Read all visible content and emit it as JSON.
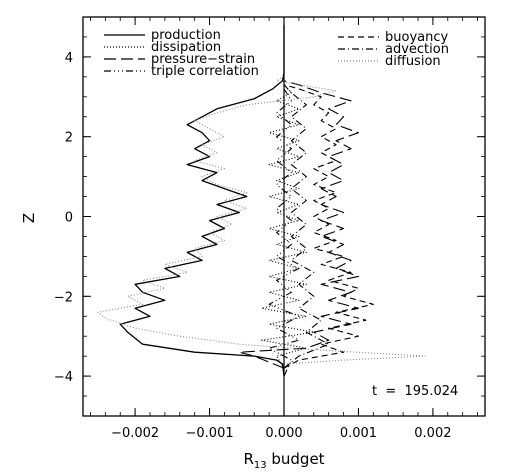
{
  "chart_data": {
    "type": "line",
    "title": "",
    "xlabel": "R",
    "xlabel_sub": "13",
    "xlabel_rest": " budget",
    "ylabel": "Z",
    "xlim": [
      -0.0027,
      0.0027
    ],
    "ylim": [
      -5,
      5
    ],
    "x_ticks": [
      -0.002,
      -0.001,
      0.0,
      0.001,
      0.002
    ],
    "x_tick_labels": [
      "−0.002",
      "−0.001",
      "0.000",
      "0.001",
      "0.002"
    ],
    "y_ticks": [
      -4,
      -2,
      0,
      2,
      4
    ],
    "y_tick_labels": [
      "−4",
      "−2",
      "0",
      "2",
      "4"
    ],
    "grid": false,
    "legend_left": [
      "production",
      "dissipation",
      "pressure−strain",
      "triple correlation"
    ],
    "legend_right": [
      "buoyancy",
      "advection",
      "diffusion"
    ],
    "annotation": "t  =  195.024",
    "series": [
      {
        "name": "production",
        "dash": "",
        "color": "#000000",
        "points": [
          [
            0,
            -4.0
          ],
          [
            -2e-05,
            -3.7
          ],
          [
            -0.0001,
            -3.6
          ],
          [
            -0.0004,
            -3.5
          ],
          [
            -0.0012,
            -3.4
          ],
          [
            -0.0019,
            -3.2
          ],
          [
            -0.0021,
            -2.9
          ],
          [
            -0.0022,
            -2.7
          ],
          [
            -0.0018,
            -2.5
          ],
          [
            -0.002,
            -2.3
          ],
          [
            -0.0016,
            -2.1
          ],
          [
            -0.0019,
            -1.9
          ],
          [
            -0.002,
            -1.7
          ],
          [
            -0.0014,
            -1.5
          ],
          [
            -0.0016,
            -1.3
          ],
          [
            -0.0011,
            -1.1
          ],
          [
            -0.0013,
            -0.9
          ],
          [
            -0.0009,
            -0.7
          ],
          [
            -0.0011,
            -0.5
          ],
          [
            -0.0008,
            -0.3
          ],
          [
            -0.001,
            -0.1
          ],
          [
            -0.0006,
            0.1
          ],
          [
            -0.0009,
            0.3
          ],
          [
            -0.0005,
            0.5
          ],
          [
            -0.0008,
            0.7
          ],
          [
            -0.0011,
            0.9
          ],
          [
            -0.0009,
            1.1
          ],
          [
            -0.0013,
            1.3
          ],
          [
            -0.001,
            1.5
          ],
          [
            -0.0012,
            1.7
          ],
          [
            -0.001,
            1.9
          ],
          [
            -0.0011,
            2.1
          ],
          [
            -0.0013,
            2.3
          ],
          [
            -0.0011,
            2.5
          ],
          [
            -0.0009,
            2.7
          ],
          [
            -0.0004,
            2.95
          ],
          [
            -0.00015,
            3.2
          ],
          [
            -2e-05,
            3.4
          ],
          [
            0,
            3.6
          ],
          [
            0,
            4.8
          ]
        ]
      },
      {
        "name": "dissipation",
        "dash": "1,2",
        "color": "#000000",
        "points": [
          [
            0,
            -3.8
          ],
          [
            -0.0001,
            -3.5
          ],
          [
            0.0003,
            -3.3
          ],
          [
            -0.0003,
            -3.1
          ],
          [
            0.0004,
            -2.9
          ],
          [
            -0.0002,
            -2.7
          ],
          [
            0.0003,
            -2.5
          ],
          [
            -0.0003,
            -2.3
          ],
          [
            0.0002,
            -2.1
          ],
          [
            -0.0002,
            -1.9
          ],
          [
            0.0003,
            -1.7
          ],
          [
            -0.0002,
            -1.5
          ],
          [
            0.0002,
            -1.3
          ],
          [
            -0.0002,
            -1.1
          ],
          [
            0.0003,
            -0.9
          ],
          [
            -0.0001,
            -0.7
          ],
          [
            0.0002,
            -0.5
          ],
          [
            -0.0002,
            -0.3
          ],
          [
            0.0002,
            -0.1
          ],
          [
            -0.0001,
            0.1
          ],
          [
            0.0002,
            0.3
          ],
          [
            -0.0002,
            0.5
          ],
          [
            0.0002,
            0.7
          ],
          [
            -0.0001,
            0.9
          ],
          [
            0.0002,
            1.1
          ],
          [
            -0.0002,
            1.3
          ],
          [
            0.0002,
            1.5
          ],
          [
            -0.0001,
            1.7
          ],
          [
            0.0002,
            1.9
          ],
          [
            -0.0002,
            2.1
          ],
          [
            0.0002,
            2.3
          ],
          [
            -0.0001,
            2.5
          ],
          [
            0.0002,
            2.7
          ],
          [
            -0.0001,
            2.9
          ],
          [
            0.0001,
            3.1
          ],
          [
            0,
            3.3
          ]
        ]
      },
      {
        "name": "pressure−strain",
        "dash": "12,5",
        "color": "#000000",
        "points": [
          [
            0,
            -3.8
          ],
          [
            -0.0004,
            -3.5
          ],
          [
            -0.0006,
            -3.4
          ],
          [
            0.0003,
            -3.3
          ],
          [
            0.0006,
            -3.1
          ],
          [
            0.0004,
            -2.9
          ],
          [
            0.0009,
            -2.7
          ],
          [
            0.0005,
            -2.5
          ],
          [
            0.001,
            -2.3
          ],
          [
            0.0006,
            -2.1
          ],
          [
            0.0009,
            -1.9
          ],
          [
            0.0005,
            -1.7
          ],
          [
            0.001,
            -1.5
          ],
          [
            0.0007,
            -1.3
          ],
          [
            0.0009,
            -1.1
          ],
          [
            0.0006,
            -0.9
          ],
          [
            0.0008,
            -0.7
          ],
          [
            0.0005,
            -0.5
          ],
          [
            0.0008,
            -0.3
          ],
          [
            0.0005,
            -0.1
          ],
          [
            0.0008,
            0.1
          ],
          [
            0.0005,
            0.3
          ],
          [
            0.0007,
            0.5
          ],
          [
            0.0005,
            0.7
          ],
          [
            0.0008,
            0.9
          ],
          [
            0.0006,
            1.1
          ],
          [
            0.0008,
            1.3
          ],
          [
            0.0006,
            1.5
          ],
          [
            0.0009,
            1.7
          ],
          [
            0.0007,
            1.9
          ],
          [
            0.001,
            2.1
          ],
          [
            0.0007,
            2.3
          ],
          [
            0.0008,
            2.5
          ],
          [
            0.0006,
            2.7
          ],
          [
            0.0009,
            2.9
          ],
          [
            0.0005,
            3.1
          ],
          [
            0.0002,
            3.3
          ],
          [
            0,
            3.4
          ]
        ]
      },
      {
        "name": "triple correlation",
        "dash": "7,3,1,3,1,3,1,3",
        "color": "#000000",
        "points": [
          [
            0,
            -4.0
          ],
          [
            0.0001,
            -3.6
          ],
          [
            -0.0002,
            -3.3
          ],
          [
            0.0002,
            -3.1
          ],
          [
            -0.0001,
            -2.8
          ],
          [
            0.0002,
            -2.5
          ],
          [
            -0.0002,
            -2.2
          ],
          [
            0.0001,
            -1.9
          ],
          [
            -0.0001,
            -1.6
          ],
          [
            0.0002,
            -1.3
          ],
          [
            -0.0001,
            -1.0
          ],
          [
            0.0001,
            -0.7
          ],
          [
            -0.0001,
            -0.4
          ],
          [
            0.0001,
            -0.1
          ],
          [
            -0.0001,
            0.2
          ],
          [
            0.0001,
            0.5
          ],
          [
            -0.0001,
            0.8
          ],
          [
            0.0001,
            1.1
          ],
          [
            -0.0001,
            1.4
          ],
          [
            0.0001,
            1.7
          ],
          [
            -0.0001,
            2.0
          ],
          [
            0.0001,
            2.3
          ],
          [
            -0.0001,
            2.6
          ],
          [
            0.0001,
            2.9
          ],
          [
            0,
            3.2
          ]
        ]
      },
      {
        "name": "buoyancy",
        "dash": "6,4",
        "color": "#000000",
        "points": [
          [
            0,
            -3.8
          ],
          [
            0.0002,
            -3.6
          ],
          [
            0.0008,
            -3.4
          ],
          [
            0.0005,
            -3.2
          ],
          [
            0.001,
            -3.0
          ],
          [
            0.0006,
            -2.8
          ],
          [
            0.0011,
            -2.6
          ],
          [
            0.0007,
            -2.4
          ],
          [
            0.0012,
            -2.2
          ],
          [
            0.0008,
            -2.0
          ],
          [
            0.001,
            -1.8
          ],
          [
            0.0006,
            -1.6
          ],
          [
            0.0009,
            -1.4
          ],
          [
            0.0005,
            -1.2
          ],
          [
            0.0008,
            -1.0
          ],
          [
            0.0004,
            -0.8
          ],
          [
            0.0007,
            -0.6
          ],
          [
            0.0004,
            -0.4
          ],
          [
            0.0006,
            -0.2
          ],
          [
            0.0004,
            0.0
          ],
          [
            0.0006,
            0.2
          ],
          [
            0.0004,
            0.4
          ],
          [
            0.0007,
            0.6
          ],
          [
            0.0004,
            0.8
          ],
          [
            0.0006,
            1.0
          ],
          [
            0.0004,
            1.2
          ],
          [
            0.0007,
            1.4
          ],
          [
            0.0005,
            1.6
          ],
          [
            0.0007,
            1.8
          ],
          [
            0.0005,
            2.0
          ],
          [
            0.0007,
            2.2
          ],
          [
            0.0005,
            2.4
          ],
          [
            0.0006,
            2.6
          ],
          [
            0.0004,
            2.8
          ],
          [
            0.0005,
            3.0
          ],
          [
            0.0002,
            3.2
          ],
          [
            0,
            3.3
          ]
        ]
      },
      {
        "name": "advection",
        "dash": "7,3,1,3",
        "color": "#000000",
        "points": [
          [
            0,
            -3.8
          ],
          [
            0.0002,
            -3.5
          ],
          [
            0.0006,
            -3.2
          ],
          [
            0.0003,
            -2.9
          ],
          [
            0.0005,
            -2.6
          ],
          [
            0.0002,
            -2.3
          ],
          [
            0.0004,
            -2.0
          ],
          [
            0.0002,
            -1.7
          ],
          [
            0.0004,
            -1.4
          ],
          [
            0.0001,
            -1.1
          ],
          [
            0.0003,
            -0.8
          ],
          [
            0.0001,
            -0.5
          ],
          [
            0.0003,
            -0.2
          ],
          [
            0.0001,
            0.1
          ],
          [
            0.0003,
            0.4
          ],
          [
            0.0001,
            0.7
          ],
          [
            0.0003,
            1.0
          ],
          [
            0.0001,
            1.3
          ],
          [
            0.0003,
            1.6
          ],
          [
            0.0001,
            1.9
          ],
          [
            0.0003,
            2.2
          ],
          [
            0.0001,
            2.5
          ],
          [
            0.0003,
            2.8
          ],
          [
            0.0001,
            3.1
          ],
          [
            0,
            3.3
          ]
        ]
      },
      {
        "name": "diffusion",
        "dash": "1,2",
        "color": "#888888",
        "points": [
          [
            0,
            -3.7
          ],
          [
            0.0008,
            -3.6
          ],
          [
            0.0019,
            -3.5
          ],
          [
            0.0005,
            -3.35
          ],
          [
            -0.0006,
            -3.2
          ],
          [
            -0.0014,
            -3.0
          ],
          [
            -0.002,
            -2.8
          ],
          [
            -0.0024,
            -2.55
          ],
          [
            -0.0025,
            -2.4
          ],
          [
            -0.0019,
            -2.2
          ],
          [
            -0.0021,
            -2.0
          ],
          [
            -0.0016,
            -1.8
          ],
          [
            -0.0019,
            -1.6
          ],
          [
            -0.0013,
            -1.4
          ],
          [
            -0.0016,
            -1.2
          ],
          [
            -0.0011,
            -1.0
          ],
          [
            -0.0012,
            -0.8
          ],
          [
            -0.0008,
            -0.6
          ],
          [
            -0.001,
            -0.4
          ],
          [
            -0.0007,
            -0.2
          ],
          [
            -0.0009,
            0.0
          ],
          [
            -0.0005,
            0.2
          ],
          [
            -0.0008,
            0.4
          ],
          [
            -0.0005,
            0.6
          ],
          [
            -0.0009,
            0.8
          ],
          [
            -0.0011,
            1.0
          ],
          [
            -0.0008,
            1.2
          ],
          [
            -0.0012,
            1.4
          ],
          [
            -0.0009,
            1.6
          ],
          [
            -0.0011,
            1.8
          ],
          [
            -0.0008,
            2.0
          ],
          [
            -0.001,
            2.2
          ],
          [
            -0.0012,
            2.4
          ],
          [
            -0.0009,
            2.6
          ],
          [
            -0.0005,
            2.8
          ],
          [
            0.0004,
            3.0
          ],
          [
            0.0007,
            3.15
          ],
          [
            0.0002,
            3.3
          ],
          [
            -0.0001,
            3.4
          ],
          [
            0,
            3.5
          ]
        ]
      }
    ]
  }
}
